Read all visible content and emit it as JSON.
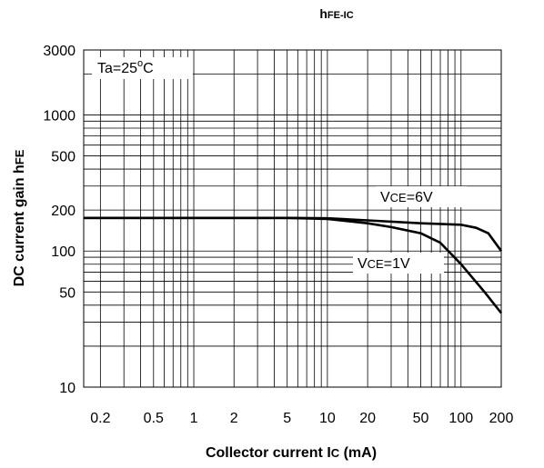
{
  "chart_data": {
    "type": "line",
    "title": {
      "main": "h",
      "sub": "FE-I",
      "sub2": "C"
    },
    "xlabel": {
      "main": "Collector current I",
      "sub": "C",
      "unit": " (mA)"
    },
    "ylabel": {
      "main": "DC current gain h",
      "sub": "FE"
    },
    "x_scale": "log",
    "y_scale": "log",
    "xlim": [
      0.15,
      200
    ],
    "ylim": [
      10,
      3000
    ],
    "x_ticks": [
      0.2,
      0.5,
      1,
      2,
      5,
      10,
      20,
      50,
      100,
      200
    ],
    "x_tick_labels": [
      "0.2",
      "0.5",
      "1",
      "2",
      "5",
      "10",
      "20",
      "50",
      "100",
      "200"
    ],
    "y_ticks": [
      10,
      50,
      100,
      200,
      500,
      1000,
      3000
    ],
    "y_tick_labels": [
      "10",
      "50",
      "100",
      "200",
      "500",
      "1000",
      "3000"
    ],
    "grid": true,
    "annotation": {
      "text": "Ta=25",
      "sup": "o",
      "suffix": "C"
    },
    "series": [
      {
        "name": "VCE=6V",
        "label": {
          "main": "V",
          "sub": "CE",
          "suffix": "=6V"
        },
        "x": [
          0.15,
          1,
          5,
          10,
          20,
          50,
          100,
          130,
          160,
          200
        ],
        "y": [
          175,
          175,
          175,
          174,
          168,
          160,
          156,
          148,
          135,
          100
        ]
      },
      {
        "name": "VCE=1V",
        "label": {
          "main": "V",
          "sub": "CE",
          "suffix": "=1V"
        },
        "x": [
          0.15,
          1,
          5,
          10,
          20,
          30,
          50,
          70,
          100,
          150,
          200
        ],
        "y": [
          175,
          175,
          175,
          172,
          160,
          150,
          135,
          115,
          80,
          50,
          35
        ]
      }
    ]
  }
}
